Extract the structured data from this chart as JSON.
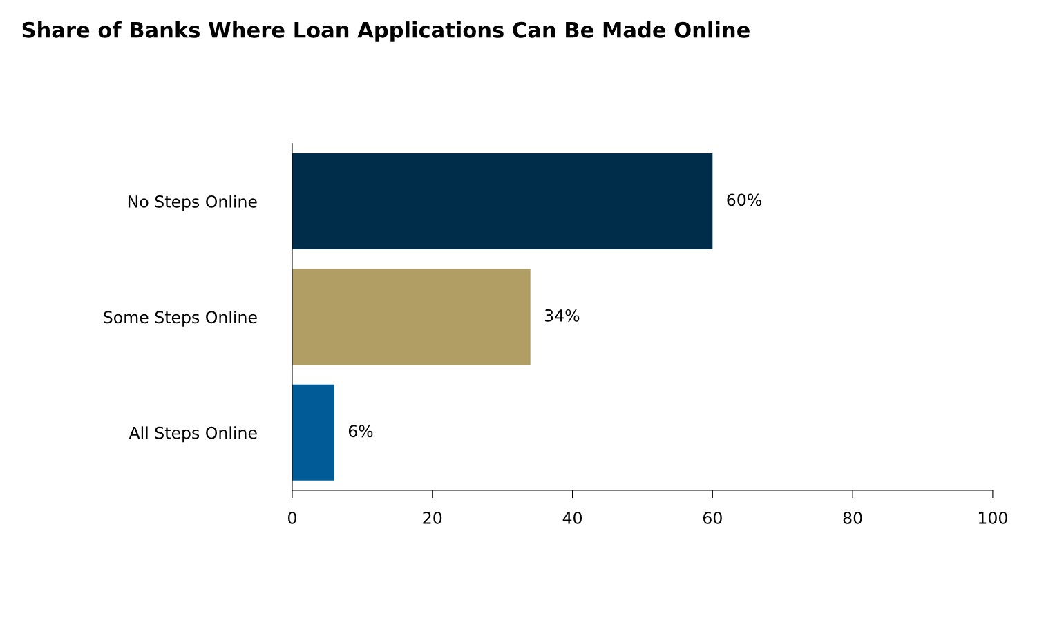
{
  "chart_data": {
    "type": "bar",
    "orientation": "horizontal",
    "title": "Share of Banks Where Loan Applications Can Be Made Online",
    "categories": [
      "No Steps Online",
      "Some Steps Online",
      "All Steps Online"
    ],
    "values": [
      60,
      34,
      6
    ],
    "colors": [
      "#002d4a",
      "#b09e64",
      "#005b96"
    ],
    "value_labels": [
      "60%",
      "34%",
      "6%"
    ],
    "xlim": [
      0,
      100
    ],
    "xticks": [
      0,
      20,
      40,
      60,
      80,
      100
    ],
    "grid": false,
    "legend": false
  }
}
